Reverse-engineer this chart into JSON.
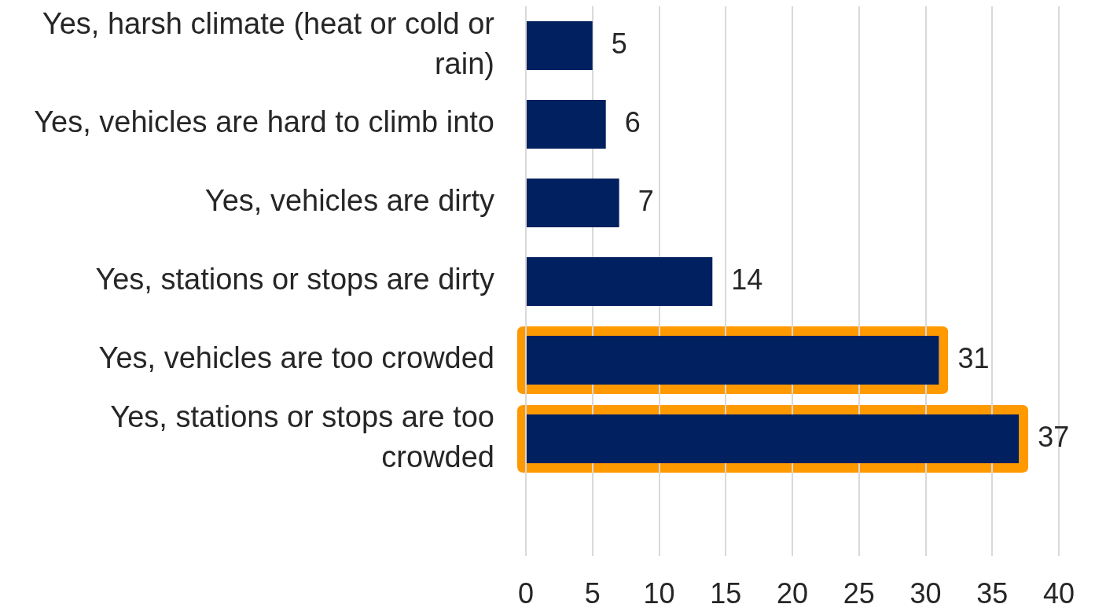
{
  "chart_data": {
    "type": "bar",
    "orientation": "horizontal",
    "categories": [
      "Yes, harsh climate (heat or cold or rain)",
      "Yes, vehicles are hard to climb into",
      "Yes, vehicles are dirty",
      "Yes, stations or stops are dirty",
      "Yes, vehicles are too crowded",
      "Yes, stations or stops are too crowded"
    ],
    "values": [
      5,
      6,
      7,
      14,
      31,
      37
    ],
    "color": "#002060",
    "xlim": [
      0,
      40
    ],
    "xticks": [
      0,
      5,
      10,
      15,
      20,
      25,
      30,
      35,
      40
    ],
    "grid": "x",
    "data_labels": true
  }
}
